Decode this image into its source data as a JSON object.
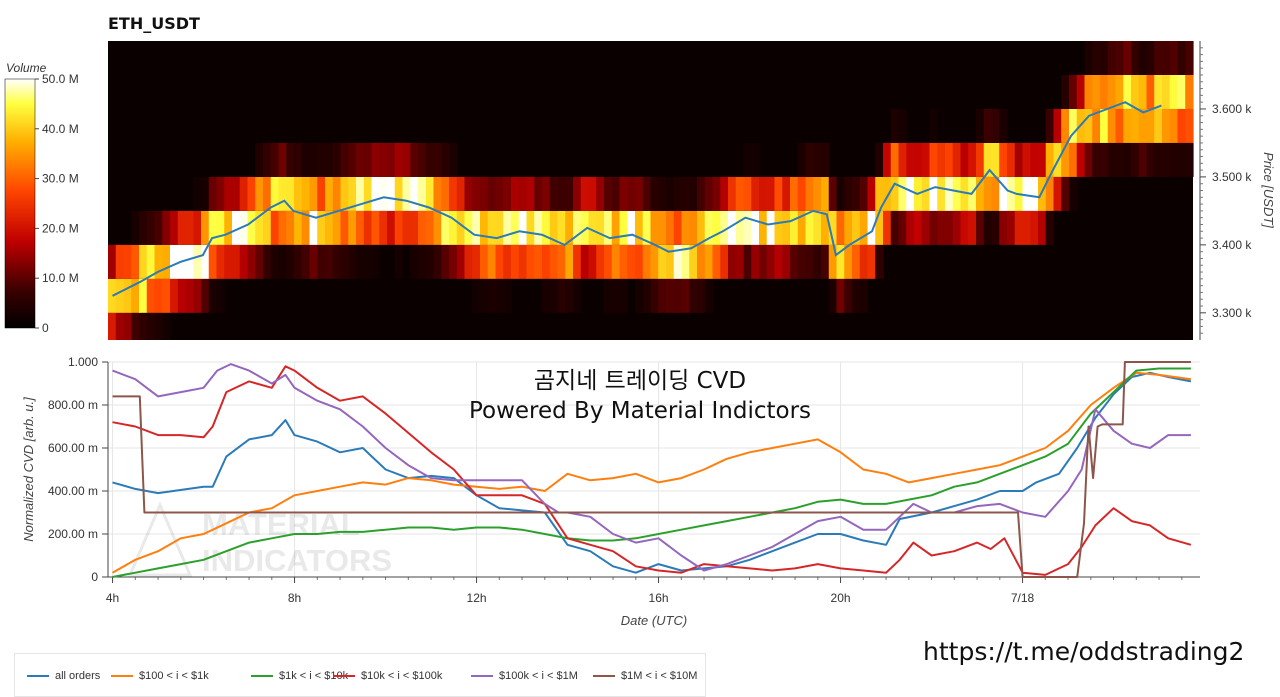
{
  "title": "ETH_USDT",
  "overlay": {
    "line1": "곰지네 트레이딩 CVD",
    "line2": "Powered By Material Indictors",
    "url": "https://t.me/oddstrading2",
    "watermark": [
      "MATERIAL",
      "INDICATORS"
    ]
  },
  "colors": {
    "all_orders": "#2b7bb9",
    "b100_1k": "#ff7f0e",
    "b1k_10k": "#2ca02c",
    "b10k_100k": "#d62728",
    "b100k_1m": "#9467bd",
    "b1m_10m": "#8c564b"
  },
  "chart_data": [
    {
      "type": "heatmap",
      "title": "ETH_USDT",
      "ylabel": "Price [USDT]",
      "yticks": [
        "3.300 k",
        "3.400 k",
        "3.500 k",
        "3.600 k"
      ],
      "ylim": [
        3260,
        3700
      ],
      "colorbar": {
        "title": "Volume",
        "ticks": [
          "0",
          "10.0 M",
          "20.0 M",
          "30.0 M",
          "40.0 M",
          "50.0 M"
        ],
        "range": [
          0,
          50
        ]
      },
      "price_series": {
        "name": "",
        "x_hours": [
          4,
          4.3,
          4.6,
          5,
          5.5,
          6,
          6.2,
          6.5,
          7,
          7.5,
          7.8,
          8,
          8.5,
          9,
          9.5,
          10,
          10.5,
          11,
          11.5,
          12,
          12.5,
          13,
          13.5,
          14,
          14.5,
          15,
          15.5,
          16,
          16.3,
          16.8,
          17.2,
          17.5,
          18,
          18.5,
          19,
          19.5,
          19.8,
          20,
          20.3,
          20.8,
          21,
          21.3,
          21.8,
          22.2,
          22.6,
          23,
          23.4,
          23.8,
          24,
          24.5,
          24.8,
          25.2,
          25.6,
          26,
          26.4,
          26.8,
          27.2
        ],
        "y": [
          3325,
          3335,
          3345,
          3360,
          3375,
          3385,
          3410,
          3415,
          3430,
          3455,
          3465,
          3450,
          3440,
          3450,
          3460,
          3470,
          3465,
          3455,
          3440,
          3415,
          3410,
          3420,
          3415,
          3400,
          3425,
          3410,
          3415,
          3400,
          3390,
          3395,
          3410,
          3420,
          3440,
          3430,
          3435,
          3450,
          3445,
          3385,
          3400,
          3420,
          3455,
          3490,
          3475,
          3485,
          3480,
          3475,
          3510,
          3480,
          3475,
          3470,
          3510,
          3560,
          3590,
          3600,
          3610,
          3595,
          3605
        ]
      }
    },
    {
      "type": "line",
      "xlabel": "Date (UTC)",
      "ylabel": "Normalized CVD [arb. u.]",
      "xticks": [
        "4h",
        "8h",
        "12h",
        "16h",
        "20h",
        "7/18"
      ],
      "x_tick_hours": [
        4,
        8,
        12,
        16,
        20,
        24
      ],
      "xlim_hours": [
        3.9,
        27.9
      ],
      "yticks": [
        "0",
        "200.00 m",
        "400.00 m",
        "600.00 m",
        "800.00 m",
        "1.000"
      ],
      "ylim": [
        0,
        1
      ],
      "grid": true,
      "legend_position": "bottom-left",
      "series": [
        {
          "name": "all orders",
          "x": [
            4,
            4.5,
            5,
            6,
            6.2,
            6.5,
            7,
            7.5,
            7.8,
            8,
            8.5,
            9,
            9.5,
            10,
            10.5,
            11,
            11.5,
            12,
            12.5,
            13,
            13.5,
            14,
            14.5,
            15,
            15.5,
            16,
            16.5,
            17,
            17.5,
            18,
            18.5,
            19,
            19.5,
            20,
            20.5,
            21,
            21.3,
            22,
            22.5,
            23,
            23.5,
            24,
            24.3,
            24.8,
            25.2,
            25.6,
            26,
            26.4,
            26.8,
            27.2,
            27.7
          ],
          "y": [
            0.44,
            0.41,
            0.39,
            0.42,
            0.42,
            0.56,
            0.64,
            0.66,
            0.73,
            0.66,
            0.63,
            0.58,
            0.6,
            0.5,
            0.46,
            0.47,
            0.46,
            0.38,
            0.32,
            0.31,
            0.3,
            0.15,
            0.12,
            0.05,
            0.02,
            0.06,
            0.03,
            0.04,
            0.05,
            0.08,
            0.12,
            0.16,
            0.2,
            0.2,
            0.17,
            0.15,
            0.27,
            0.3,
            0.33,
            0.36,
            0.4,
            0.4,
            0.44,
            0.48,
            0.6,
            0.74,
            0.85,
            0.93,
            0.95,
            0.93,
            0.91
          ]
        },
        {
          "name": "$100 < i < $1k",
          "x": [
            4,
            4.5,
            5,
            5.5,
            6,
            6.5,
            7,
            7.5,
            8,
            8.5,
            9,
            9.5,
            10,
            10.5,
            11,
            11.5,
            12,
            12.5,
            13,
            13.5,
            14,
            14.5,
            15,
            15.5,
            16,
            16.5,
            17,
            17.5,
            18,
            18.5,
            19,
            19.5,
            20,
            20.5,
            21,
            21.5,
            22,
            22.5,
            23,
            23.5,
            24,
            24.5,
            25,
            25.5,
            26,
            26.5,
            27,
            27.7
          ],
          "y": [
            0.02,
            0.08,
            0.12,
            0.18,
            0.2,
            0.25,
            0.3,
            0.32,
            0.38,
            0.4,
            0.42,
            0.44,
            0.43,
            0.46,
            0.45,
            0.43,
            0.42,
            0.41,
            0.42,
            0.4,
            0.48,
            0.45,
            0.46,
            0.48,
            0.44,
            0.46,
            0.5,
            0.55,
            0.58,
            0.6,
            0.62,
            0.64,
            0.58,
            0.5,
            0.48,
            0.44,
            0.46,
            0.48,
            0.5,
            0.52,
            0.56,
            0.6,
            0.68,
            0.8,
            0.88,
            0.95,
            0.94,
            0.92
          ]
        },
        {
          "name": "$1k < i < $10k",
          "x": [
            4,
            4.5,
            5,
            5.5,
            6,
            6.5,
            7,
            7.5,
            8,
            8.5,
            9,
            9.5,
            10,
            10.5,
            11,
            11.5,
            12,
            12.5,
            13,
            13.5,
            14,
            14.5,
            15,
            15.5,
            16,
            16.5,
            17,
            17.5,
            18,
            18.5,
            19,
            19.5,
            20,
            20.5,
            21,
            21.5,
            22,
            22.5,
            23,
            23.5,
            24,
            24.5,
            25,
            25.5,
            26,
            26.5,
            27,
            27.7
          ],
          "y": [
            0.0,
            0.02,
            0.04,
            0.06,
            0.08,
            0.12,
            0.16,
            0.18,
            0.2,
            0.2,
            0.21,
            0.21,
            0.22,
            0.23,
            0.23,
            0.22,
            0.23,
            0.23,
            0.22,
            0.2,
            0.18,
            0.17,
            0.17,
            0.18,
            0.2,
            0.22,
            0.24,
            0.26,
            0.28,
            0.3,
            0.32,
            0.35,
            0.36,
            0.34,
            0.34,
            0.36,
            0.38,
            0.42,
            0.44,
            0.48,
            0.52,
            0.56,
            0.62,
            0.76,
            0.86,
            0.96,
            0.97,
            0.97
          ]
        },
        {
          "name": "$10k < i < $100k",
          "x": [
            4,
            4.5,
            5,
            5.5,
            6,
            6.2,
            6.5,
            7,
            7.5,
            7.8,
            8,
            8.5,
            9,
            9.5,
            10,
            10.5,
            11,
            11.5,
            12,
            12.5,
            13,
            13.5,
            14,
            14.5,
            15,
            15.5,
            16,
            16.5,
            17,
            17.5,
            18,
            18.5,
            19,
            19.5,
            20,
            20.5,
            21,
            21.3,
            21.6,
            22,
            22.5,
            23,
            23.3,
            23.6,
            24,
            24.5,
            25,
            25.3,
            25.6,
            26,
            26.4,
            26.8,
            27.2,
            27.7
          ],
          "y": [
            0.72,
            0.7,
            0.66,
            0.66,
            0.65,
            0.7,
            0.86,
            0.91,
            0.88,
            0.98,
            0.96,
            0.88,
            0.82,
            0.84,
            0.76,
            0.67,
            0.58,
            0.5,
            0.38,
            0.38,
            0.38,
            0.34,
            0.18,
            0.15,
            0.12,
            0.05,
            0.03,
            0.02,
            0.06,
            0.05,
            0.04,
            0.03,
            0.04,
            0.06,
            0.04,
            0.03,
            0.02,
            0.08,
            0.16,
            0.1,
            0.12,
            0.16,
            0.13,
            0.18,
            0.02,
            0.01,
            0.06,
            0.14,
            0.24,
            0.32,
            0.26,
            0.24,
            0.18,
            0.15
          ]
        },
        {
          "name": "$100k < i < $1M",
          "x": [
            4,
            4.5,
            5,
            5.5,
            6,
            6.3,
            6.6,
            7,
            7.5,
            7.8,
            8,
            8.5,
            9,
            9.5,
            10,
            10.5,
            11,
            11.5,
            12,
            12.5,
            13,
            13.5,
            13.8,
            14,
            14.5,
            15,
            15.5,
            16,
            16.5,
            17,
            17.5,
            18,
            18.5,
            19,
            19.5,
            20,
            20.5,
            21,
            21.3,
            21.6,
            22,
            22.5,
            23,
            23.5,
            24,
            24.5,
            25,
            25.3,
            25.6,
            26,
            26.4,
            26.8,
            27.2,
            27.7
          ],
          "y": [
            0.96,
            0.92,
            0.84,
            0.86,
            0.88,
            0.96,
            0.99,
            0.96,
            0.9,
            0.94,
            0.88,
            0.82,
            0.78,
            0.7,
            0.6,
            0.52,
            0.46,
            0.45,
            0.45,
            0.45,
            0.45,
            0.34,
            0.3,
            0.3,
            0.28,
            0.2,
            0.16,
            0.18,
            0.1,
            0.03,
            0.06,
            0.1,
            0.14,
            0.2,
            0.26,
            0.28,
            0.22,
            0.22,
            0.28,
            0.34,
            0.3,
            0.3,
            0.33,
            0.34,
            0.3,
            0.28,
            0.4,
            0.5,
            0.78,
            0.68,
            0.62,
            0.6,
            0.66,
            0.66
          ]
        },
        {
          "name": "$1M < i < $10M",
          "x": [
            4,
            4.6,
            4.7,
            21.6,
            23.9,
            24.0,
            25.2,
            25.35,
            25.45,
            25.55,
            25.65,
            25.75,
            26.0,
            26.2,
            26.25,
            27.7
          ],
          "y": [
            0.84,
            0.84,
            0.3,
            0.3,
            0.3,
            0.0,
            0.0,
            0.25,
            0.7,
            0.46,
            0.7,
            0.71,
            0.71,
            0.71,
            1.0,
            1.0
          ]
        }
      ]
    }
  ]
}
